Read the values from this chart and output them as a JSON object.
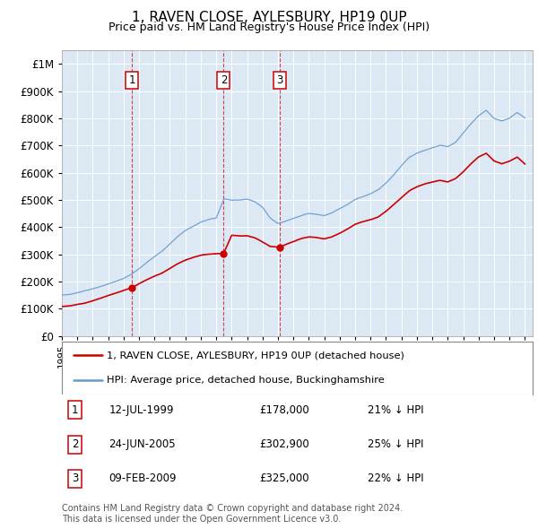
{
  "title": "1, RAVEN CLOSE, AYLESBURY, HP19 0UP",
  "subtitle": "Price paid vs. HM Land Registry's House Price Index (HPI)",
  "ytick_values": [
    0,
    100000,
    200000,
    300000,
    400000,
    500000,
    600000,
    700000,
    800000,
    900000,
    1000000
  ],
  "ylim": [
    0,
    1050000
  ],
  "xlim_start": 1995.0,
  "xlim_end": 2025.5,
  "background_color": "#dce9f5",
  "grid_color": "#ffffff",
  "sale_dates": [
    1999.54,
    2005.48,
    2009.11
  ],
  "sale_prices": [
    178000,
    302900,
    325000
  ],
  "sale_labels": [
    "1",
    "2",
    "3"
  ],
  "sale_date_strs": [
    "12-JUL-1999",
    "24-JUN-2005",
    "09-FEB-2009"
  ],
  "sale_price_strs": [
    "£178,000",
    "£302,900",
    "£325,000"
  ],
  "sale_pct_strs": [
    "21% ↓ HPI",
    "25% ↓ HPI",
    "22% ↓ HPI"
  ],
  "legend_house_label": "1, RAVEN CLOSE, AYLESBURY, HP19 0UP (detached house)",
  "legend_hpi_label": "HPI: Average price, detached house, Buckinghamshire",
  "footer_line1": "Contains HM Land Registry data © Crown copyright and database right 2024.",
  "footer_line2": "This data is licensed under the Open Government Licence v3.0.",
  "house_color": "#cc0000",
  "hpi_color": "#6699cc",
  "dashed_line_color": "#cc0000",
  "marker_color": "#cc0000",
  "box_edge_color": "#cc0000",
  "hpi_kx": [
    1995.0,
    1995.5,
    1996.0,
    1996.5,
    1997.0,
    1997.5,
    1998.0,
    1998.5,
    1999.0,
    1999.5,
    2000.0,
    2000.5,
    2001.0,
    2001.5,
    2002.0,
    2002.5,
    2003.0,
    2003.5,
    2004.0,
    2004.5,
    2005.0,
    2005.5,
    2006.0,
    2006.5,
    2007.0,
    2007.5,
    2008.0,
    2008.5,
    2009.0,
    2009.5,
    2010.0,
    2010.5,
    2011.0,
    2011.5,
    2012.0,
    2012.5,
    2013.0,
    2013.5,
    2014.0,
    2014.5,
    2015.0,
    2015.5,
    2016.0,
    2016.5,
    2017.0,
    2017.5,
    2018.0,
    2018.5,
    2019.0,
    2019.5,
    2020.0,
    2020.5,
    2021.0,
    2021.5,
    2022.0,
    2022.5,
    2023.0,
    2023.5,
    2024.0,
    2024.5,
    2025.0
  ],
  "hpi_ky": [
    150000,
    152000,
    158000,
    165000,
    172000,
    180000,
    190000,
    200000,
    210000,
    225000,
    245000,
    268000,
    290000,
    310000,
    335000,
    362000,
    385000,
    400000,
    415000,
    425000,
    430000,
    500000,
    495000,
    495000,
    500000,
    490000,
    470000,
    430000,
    410000,
    420000,
    430000,
    440000,
    448000,
    445000,
    440000,
    450000,
    465000,
    480000,
    500000,
    510000,
    520000,
    535000,
    560000,
    590000,
    625000,
    655000,
    670000,
    680000,
    690000,
    700000,
    695000,
    710000,
    745000,
    780000,
    810000,
    830000,
    800000,
    790000,
    800000,
    820000,
    800000
  ],
  "red_kx": [
    1995.0,
    1995.5,
    1996.0,
    1996.5,
    1997.0,
    1997.5,
    1998.0,
    1998.5,
    1999.0,
    1999.54,
    2000.0,
    2000.5,
    2001.0,
    2001.5,
    2002.0,
    2002.5,
    2003.0,
    2003.5,
    2004.0,
    2004.5,
    2005.0,
    2005.48,
    2006.0,
    2006.5,
    2007.0,
    2007.5,
    2008.0,
    2008.5,
    2009.11,
    2009.5,
    2010.0,
    2010.5,
    2011.0,
    2011.5,
    2012.0,
    2012.5,
    2013.0,
    2013.5,
    2014.0,
    2014.5,
    2015.0,
    2015.5,
    2016.0,
    2016.5,
    2017.0,
    2017.5,
    2018.0,
    2018.5,
    2019.0,
    2019.5,
    2020.0,
    2020.5,
    2021.0,
    2021.5,
    2022.0,
    2022.5,
    2023.0,
    2023.5,
    2024.0,
    2024.5,
    2025.0
  ],
  "red_ky": [
    108000,
    110000,
    115000,
    120000,
    128000,
    138000,
    148000,
    158000,
    168000,
    178000,
    192000,
    207000,
    220000,
    232000,
    248000,
    265000,
    278000,
    288000,
    296000,
    300000,
    302000,
    302900,
    370000,
    367000,
    368000,
    360000,
    345000,
    328000,
    325000,
    335000,
    345000,
    355000,
    362000,
    360000,
    355000,
    362000,
    375000,
    390000,
    408000,
    418000,
    425000,
    435000,
    455000,
    480000,
    505000,
    530000,
    545000,
    555000,
    562000,
    568000,
    562000,
    575000,
    600000,
    630000,
    655000,
    668000,
    640000,
    630000,
    640000,
    655000,
    630000
  ]
}
